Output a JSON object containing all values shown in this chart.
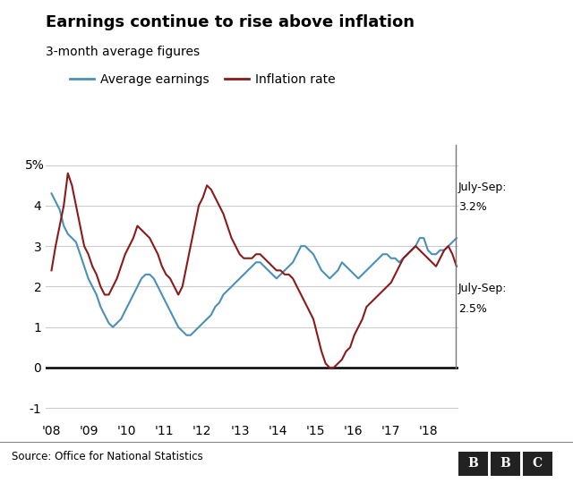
{
  "title": "Earnings continue to rise above inflation",
  "subtitle": "3-month average figures",
  "source": "Source: Office for National Statistics",
  "earnings_color": "#4a90b8",
  "inflation_color": "#8b1a1a",
  "background_color": "#ffffff",
  "ylim": [
    -1.3,
    5.5
  ],
  "avg_earnings": [
    4.3,
    4.1,
    3.9,
    3.5,
    3.3,
    3.2,
    3.1,
    2.8,
    2.5,
    2.2,
    2.0,
    1.8,
    1.5,
    1.3,
    1.1,
    1.0,
    1.1,
    1.2,
    1.4,
    1.6,
    1.8,
    2.0,
    2.2,
    2.3,
    2.3,
    2.2,
    2.0,
    1.8,
    1.6,
    1.4,
    1.2,
    1.0,
    0.9,
    0.8,
    0.8,
    0.9,
    1.0,
    1.1,
    1.2,
    1.3,
    1.5,
    1.6,
    1.8,
    1.9,
    2.0,
    2.1,
    2.2,
    2.3,
    2.4,
    2.5,
    2.6,
    2.6,
    2.5,
    2.4,
    2.3,
    2.2,
    2.3,
    2.4,
    2.5,
    2.6,
    2.8,
    3.0,
    3.0,
    2.9,
    2.8,
    2.6,
    2.4,
    2.3,
    2.2,
    2.3,
    2.4,
    2.6,
    2.5,
    2.4,
    2.3,
    2.2,
    2.3,
    2.4,
    2.5,
    2.6,
    2.7,
    2.8,
    2.8,
    2.7,
    2.7,
    2.6,
    2.7,
    2.8,
    2.9,
    3.0,
    3.2,
    3.2,
    2.9,
    2.8,
    2.8,
    2.9,
    2.9,
    3.0,
    3.1,
    3.2
  ],
  "inflation": [
    2.4,
    3.0,
    3.5,
    4.0,
    4.8,
    4.5,
    4.0,
    3.5,
    3.0,
    2.8,
    2.5,
    2.3,
    2.0,
    1.8,
    1.8,
    2.0,
    2.2,
    2.5,
    2.8,
    3.0,
    3.2,
    3.5,
    3.4,
    3.3,
    3.2,
    3.0,
    2.8,
    2.5,
    2.3,
    2.2,
    2.0,
    1.8,
    2.0,
    2.5,
    3.0,
    3.5,
    4.0,
    4.2,
    4.5,
    4.4,
    4.2,
    4.0,
    3.8,
    3.5,
    3.2,
    3.0,
    2.8,
    2.7,
    2.7,
    2.7,
    2.8,
    2.8,
    2.7,
    2.6,
    2.5,
    2.4,
    2.4,
    2.3,
    2.3,
    2.2,
    2.0,
    1.8,
    1.6,
    1.4,
    1.2,
    0.8,
    0.4,
    0.1,
    0.0,
    0.0,
    0.1,
    0.2,
    0.4,
    0.5,
    0.8,
    1.0,
    1.2,
    1.5,
    1.6,
    1.7,
    1.8,
    1.9,
    2.0,
    2.1,
    2.3,
    2.5,
    2.7,
    2.8,
    2.9,
    3.0,
    2.9,
    2.8,
    2.7,
    2.6,
    2.5,
    2.7,
    2.9,
    3.0,
    2.8,
    2.5
  ],
  "x_start_year": 2008,
  "x_end_year": 2018.75,
  "n_points": 100,
  "xtick_labels": [
    "'08",
    "'09",
    "'10",
    "'11",
    "'12",
    "'13",
    "'14",
    "'15",
    "'16",
    "'17",
    "'18"
  ],
  "xtick_positions": [
    2008,
    2009,
    2010,
    2011,
    2012,
    2013,
    2014,
    2015,
    2016,
    2017,
    2018
  ],
  "ytick_positions": [
    -1,
    0,
    1,
    2,
    3,
    4
  ],
  "ytick_labels": [
    "-1",
    "0",
    "1",
    "2",
    "3",
    "4"
  ],
  "gridline_color": "#cccccc",
  "zero_line_color": "#000000",
  "annotation_line_color": "#777777"
}
